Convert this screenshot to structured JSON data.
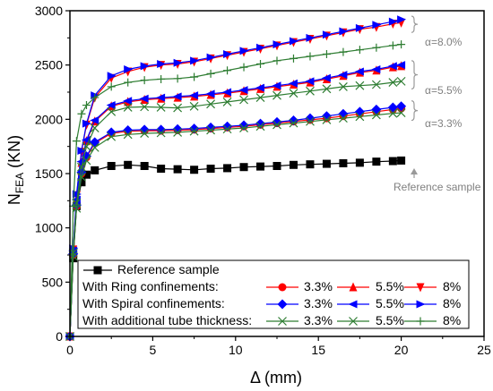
{
  "chart_data": {
    "type": "line",
    "xlabel": "Δ (mm)",
    "ylabel_main": "N",
    "ylabel_sub": "FEA",
    "ylabel_unit": " (KN)",
    "xlim": [
      0,
      25
    ],
    "ylim": [
      0,
      3000
    ],
    "xticks": [
      0,
      5,
      10,
      15,
      20,
      25
    ],
    "yticks": [
      0,
      500,
      1000,
      1500,
      2000,
      2500,
      3000
    ],
    "legend": {
      "placement": "bottom",
      "reference": "Reference sample",
      "groups": [
        {
          "label": "With Ring confinements:",
          "items": [
            "3.3%",
            "5.5%",
            "8%"
          ]
        },
        {
          "label": "With Spiral confinements:",
          "items": [
            "3.3%",
            "5.5%",
            "8%"
          ]
        },
        {
          "label": "With additional tube thickness:",
          "items": [
            "3.3%",
            "5.5%",
            "8%"
          ]
        }
      ]
    },
    "annotations": {
      "alpha_high": "α=8.0%",
      "alpha_mid": "α=5.5%",
      "alpha_low": "α=3.3%",
      "reference": "Reference sample"
    },
    "series": [
      {
        "name": "Reference sample",
        "color": "#000000",
        "marker": "square",
        "x": [
          0,
          0.2,
          0.4,
          0.7,
          1.0,
          1.5,
          2.5,
          3.5,
          4.5,
          5.5,
          6.5,
          7.5,
          8.5,
          9.5,
          10.5,
          11.5,
          12.5,
          13.5,
          14.5,
          15.5,
          16.5,
          17.5,
          18.5,
          19.5,
          20
        ],
        "y": [
          0,
          720,
          1200,
          1420,
          1490,
          1530,
          1570,
          1580,
          1570,
          1545,
          1540,
          1535,
          1545,
          1550,
          1560,
          1565,
          1570,
          1580,
          1585,
          1590,
          1595,
          1600,
          1610,
          1615,
          1620
        ]
      },
      {
        "name": "3.3%",
        "group": "With Ring confinements:",
        "color": "#ff0000",
        "marker": "circle",
        "x": [
          0,
          0.2,
          0.4,
          0.7,
          1.0,
          1.5,
          2.5,
          3.5,
          4.5,
          5.5,
          6.5,
          7.5,
          8.5,
          9.5,
          10.5,
          11.5,
          12.5,
          13.5,
          14.5,
          15.5,
          16.5,
          17.5,
          18.5,
          19.5,
          20
        ],
        "y": [
          0,
          750,
          1200,
          1500,
          1650,
          1780,
          1870,
          1890,
          1895,
          1895,
          1900,
          1905,
          1915,
          1925,
          1935,
          1950,
          1965,
          1980,
          1995,
          2010,
          2030,
          2050,
          2070,
          2090,
          2100
        ]
      },
      {
        "name": "5.5%",
        "group": "With Ring confinements:",
        "color": "#ff0000",
        "marker": "triangle-up",
        "x": [
          0,
          0.2,
          0.4,
          0.7,
          1.0,
          1.5,
          2.5,
          3.5,
          4.5,
          5.5,
          6.5,
          7.5,
          8.5,
          9.5,
          10.5,
          11.5,
          12.5,
          13.5,
          14.5,
          15.5,
          16.5,
          17.5,
          18.5,
          19.5,
          20
        ],
        "y": [
          0,
          780,
          1250,
          1600,
          1800,
          1980,
          2120,
          2160,
          2180,
          2190,
          2200,
          2210,
          2225,
          2240,
          2260,
          2280,
          2300,
          2320,
          2340,
          2370,
          2400,
          2430,
          2450,
          2480,
          2490
        ]
      },
      {
        "name": "8%",
        "group": "With Ring confinements:",
        "color": "#ff0000",
        "marker": "triangle-down",
        "x": [
          0,
          0.2,
          0.4,
          0.7,
          1.0,
          1.5,
          2.5,
          3.5,
          4.5,
          5.5,
          6.5,
          7.5,
          8.5,
          9.5,
          10.5,
          11.5,
          12.5,
          13.5,
          14.5,
          15.5,
          16.5,
          17.5,
          18.5,
          19.5,
          20
        ],
        "y": [
          0,
          800,
          1300,
          1700,
          1950,
          2200,
          2380,
          2440,
          2480,
          2500,
          2510,
          2530,
          2560,
          2590,
          2620,
          2650,
          2680,
          2710,
          2740,
          2770,
          2800,
          2830,
          2850,
          2880,
          2890
        ]
      },
      {
        "name": "3.3%",
        "group": "With Spiral confinements:",
        "color": "#0000ff",
        "marker": "diamond",
        "x": [
          0,
          0.2,
          0.4,
          0.7,
          1.0,
          1.5,
          2.5,
          3.5,
          4.5,
          5.5,
          6.5,
          7.5,
          8.5,
          9.5,
          10.5,
          11.5,
          12.5,
          13.5,
          14.5,
          15.5,
          16.5,
          17.5,
          18.5,
          19.5,
          20
        ],
        "y": [
          0,
          760,
          1210,
          1510,
          1660,
          1790,
          1880,
          1900,
          1905,
          1905,
          1910,
          1915,
          1925,
          1935,
          1945,
          1960,
          1975,
          1990,
          2010,
          2030,
          2050,
          2070,
          2090,
          2110,
          2120
        ]
      },
      {
        "name": "5.5%",
        "group": "With Spiral confinements:",
        "color": "#0000ff",
        "marker": "triangle-left",
        "x": [
          0,
          0.2,
          0.4,
          0.7,
          1.0,
          1.5,
          2.5,
          3.5,
          4.5,
          5.5,
          6.5,
          7.5,
          8.5,
          9.5,
          10.5,
          11.5,
          12.5,
          13.5,
          14.5,
          15.5,
          16.5,
          17.5,
          18.5,
          19.5,
          20
        ],
        "y": [
          0,
          790,
          1260,
          1610,
          1810,
          1990,
          2130,
          2170,
          2190,
          2200,
          2210,
          2220,
          2235,
          2250,
          2270,
          2290,
          2310,
          2330,
          2350,
          2380,
          2410,
          2440,
          2460,
          2490,
          2500
        ]
      },
      {
        "name": "8%",
        "group": "With Spiral confinements:",
        "color": "#0000ff",
        "marker": "triangle-right",
        "x": [
          0,
          0.2,
          0.4,
          0.7,
          1.0,
          1.5,
          2.5,
          3.5,
          4.5,
          5.5,
          6.5,
          7.5,
          8.5,
          9.5,
          10.5,
          11.5,
          12.5,
          13.5,
          14.5,
          15.5,
          16.5,
          17.5,
          18.5,
          19.5,
          20
        ],
        "y": [
          0,
          810,
          1310,
          1710,
          1960,
          2220,
          2400,
          2460,
          2490,
          2510,
          2520,
          2540,
          2570,
          2600,
          2630,
          2660,
          2690,
          2720,
          2750,
          2780,
          2810,
          2840,
          2870,
          2900,
          2920
        ]
      },
      {
        "name": "3.3%",
        "group": "With additional tube thickness:",
        "color": "#2e7d32",
        "marker": "x",
        "x": [
          0,
          0.2,
          0.4,
          0.7,
          1.0,
          1.5,
          2.5,
          3.5,
          4.5,
          5.5,
          6.5,
          7.5,
          8.5,
          9.5,
          10.5,
          11.5,
          12.5,
          13.5,
          14.5,
          15.5,
          16.5,
          17.5,
          18.5,
          19.5,
          20
        ],
        "y": [
          0,
          740,
          1180,
          1470,
          1620,
          1740,
          1840,
          1860,
          1870,
          1875,
          1880,
          1890,
          1900,
          1910,
          1920,
          1935,
          1950,
          1965,
          1980,
          1995,
          2010,
          2025,
          2040,
          2055,
          2060
        ]
      },
      {
        "name": "5.5%",
        "group": "With additional tube thickness:",
        "color": "#2e7d32",
        "marker": "x",
        "x": [
          0,
          0.2,
          0.4,
          0.7,
          1.0,
          1.5,
          2.5,
          3.5,
          4.5,
          5.5,
          6.5,
          7.5,
          8.5,
          9.5,
          10.5,
          11.5,
          12.5,
          13.5,
          14.5,
          15.5,
          16.5,
          17.5,
          18.5,
          19.5,
          20
        ],
        "y": [
          0,
          770,
          1230,
          1560,
          1750,
          1920,
          2070,
          2110,
          2115,
          2110,
          2105,
          2120,
          2140,
          2160,
          2180,
          2200,
          2220,
          2240,
          2260,
          2280,
          2300,
          2310,
          2320,
          2340,
          2350
        ]
      },
      {
        "name": "8%",
        "group": "With additional tube thickness:",
        "color": "#2e7d32",
        "marker": "plus",
        "x": [
          0,
          0.2,
          0.4,
          0.7,
          1.0,
          1.5,
          2.5,
          3.5,
          4.5,
          5.5,
          6.5,
          7.5,
          8.5,
          9.5,
          10.5,
          11.5,
          12.5,
          13.5,
          14.5,
          15.5,
          16.5,
          17.5,
          18.5,
          19.5,
          20
        ],
        "y": [
          0,
          1200,
          1800,
          2050,
          2130,
          2200,
          2300,
          2340,
          2360,
          2370,
          2375,
          2390,
          2420,
          2450,
          2480,
          2510,
          2540,
          2560,
          2580,
          2600,
          2620,
          2640,
          2660,
          2680,
          2690
        ]
      }
    ]
  }
}
